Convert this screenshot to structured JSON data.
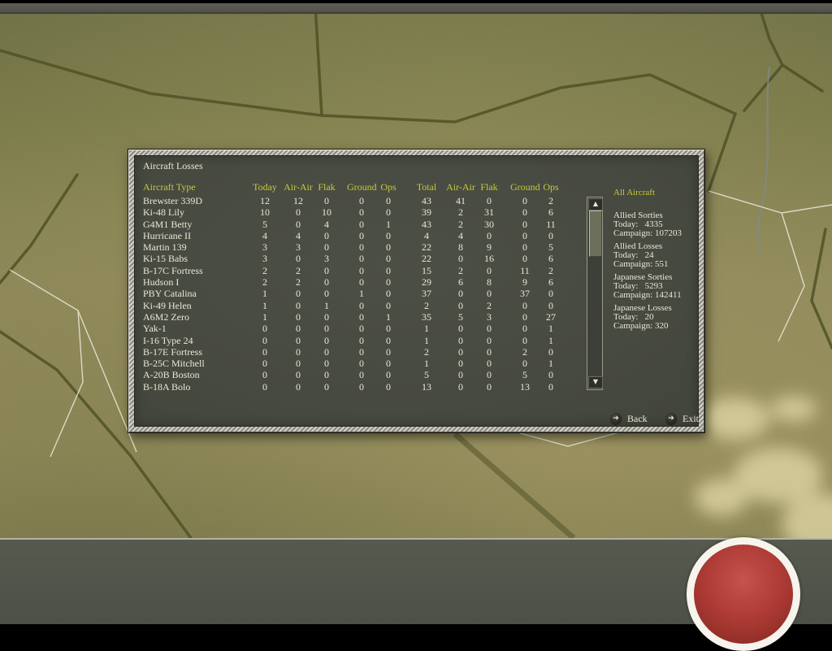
{
  "window": {
    "title": "Aircraft Losses"
  },
  "table": {
    "columns": [
      "Aircraft Type",
      "Today",
      "Air-Air",
      "Flak",
      "Ground",
      "Ops",
      "Total",
      "Air-Air",
      "Flak",
      "Ground",
      "Ops"
    ],
    "rows": [
      [
        "Brewster 339D",
        "12",
        "12",
        "0",
        "0",
        "0",
        "43",
        "41",
        "0",
        "0",
        "2"
      ],
      [
        "Ki-48 Lily",
        "10",
        "0",
        "10",
        "0",
        "0",
        "39",
        "2",
        "31",
        "0",
        "6"
      ],
      [
        "G4M1 Betty",
        "5",
        "0",
        "4",
        "0",
        "1",
        "43",
        "2",
        "30",
        "0",
        "11"
      ],
      [
        "Hurricane II",
        "4",
        "4",
        "0",
        "0",
        "0",
        "4",
        "4",
        "0",
        "0",
        "0"
      ],
      [
        "Martin 139",
        "3",
        "3",
        "0",
        "0",
        "0",
        "22",
        "8",
        "9",
        "0",
        "5"
      ],
      [
        "Ki-15 Babs",
        "3",
        "0",
        "3",
        "0",
        "0",
        "22",
        "0",
        "16",
        "0",
        "6"
      ],
      [
        "B-17C Fortress",
        "2",
        "2",
        "0",
        "0",
        "0",
        "15",
        "2",
        "0",
        "11",
        "2"
      ],
      [
        "Hudson I",
        "2",
        "2",
        "0",
        "0",
        "0",
        "29",
        "6",
        "8",
        "9",
        "6"
      ],
      [
        "PBY Catalina",
        "1",
        "0",
        "0",
        "1",
        "0",
        "37",
        "0",
        "0",
        "37",
        "0"
      ],
      [
        "Ki-49 Helen",
        "1",
        "0",
        "1",
        "0",
        "0",
        "2",
        "0",
        "2",
        "0",
        "0"
      ],
      [
        "A6M2 Zero",
        "1",
        "0",
        "0",
        "0",
        "1",
        "35",
        "5",
        "3",
        "0",
        "27"
      ],
      [
        "Yak-1",
        "0",
        "0",
        "0",
        "0",
        "0",
        "1",
        "0",
        "0",
        "0",
        "1"
      ],
      [
        "I-16 Type 24",
        "0",
        "0",
        "0",
        "0",
        "0",
        "1",
        "0",
        "0",
        "0",
        "1"
      ],
      [
        "B-17E Fortress",
        "0",
        "0",
        "0",
        "0",
        "0",
        "2",
        "0",
        "0",
        "2",
        "0"
      ],
      [
        "B-25C Mitchell",
        "0",
        "0",
        "0",
        "0",
        "0",
        "1",
        "0",
        "0",
        "0",
        "1"
      ],
      [
        "A-20B Boston",
        "0",
        "0",
        "0",
        "0",
        "0",
        "5",
        "0",
        "0",
        "5",
        "0"
      ],
      [
        "B-18A Bolo",
        "0",
        "0",
        "0",
        "0",
        "0",
        "13",
        "0",
        "0",
        "13",
        "0"
      ]
    ]
  },
  "summary": {
    "title": "All Aircraft",
    "blocks": [
      {
        "title": "Allied Sorties",
        "today": "Today:   4335",
        "campaign": "Campaign: 107203"
      },
      {
        "title": "Allied Losses",
        "today": "Today:   24",
        "campaign": "Campaign: 551"
      },
      {
        "title": "Japanese Sorties",
        "today": "Today:   5293",
        "campaign": "Campaign: 142411"
      },
      {
        "title": "Japanese Losses",
        "today": "Today:   20",
        "campaign": "Campaign: 320"
      }
    ]
  },
  "buttons": {
    "back": "Back",
    "exit": "Exit"
  },
  "icons": {
    "arrow_glyph": "➔",
    "scroll_up": "▲",
    "scroll_down": "▼"
  },
  "colors": {
    "accent_yellow": "#c9c838",
    "text_cream": "#ebe7d5",
    "dialog_bg": "#474a41",
    "frame_gray": "#aeaca4",
    "emblem_red": "#b03c36",
    "map_olive": "#8c8554"
  }
}
